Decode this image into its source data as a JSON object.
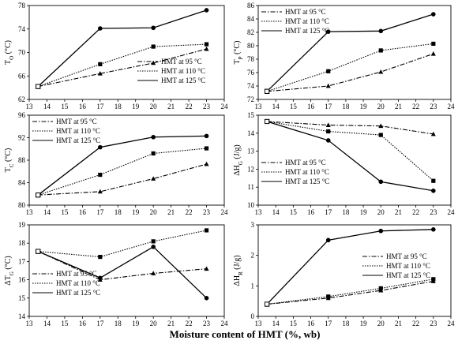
{
  "figure": {
    "xlabel": "Moisture content of HMT (%, wb)"
  },
  "styles": {
    "95": {
      "dash": "6,2,1.5,2",
      "marker": "triangle"
    },
    "110": {
      "dash": "1.5,1.5",
      "marker": "square"
    },
    "125": {
      "dash": "",
      "marker": "circle"
    }
  },
  "chart_data": [
    {
      "id": "To",
      "type": "line",
      "ylabel": "T",
      "ylabel_sub": "O",
      "ylabel_unit": " (°C)",
      "xlim": [
        13,
        24
      ],
      "ylim": [
        62,
        78
      ],
      "xticks": [
        13,
        14,
        15,
        16,
        17,
        18,
        19,
        20,
        21,
        22,
        23,
        24
      ],
      "yticks": [
        62,
        66,
        70,
        74,
        78
      ],
      "legend": "bottom-right",
      "series": [
        {
          "name": "HMT at 95 °C",
          "key": "95",
          "x": [
            13.5,
            17,
            20,
            23
          ],
          "y": [
            64.2,
            66.4,
            68.2,
            70.6
          ]
        },
        {
          "name": "HMT at 110 °C",
          "key": "110",
          "x": [
            13.5,
            17,
            20,
            23
          ],
          "y": [
            64.2,
            68.0,
            71.0,
            71.4
          ]
        },
        {
          "name": "HMT at 125 °C",
          "key": "125",
          "x": [
            13.5,
            17,
            20,
            23
          ],
          "y": [
            64.2,
            74.1,
            74.2,
            77.2
          ]
        }
      ]
    },
    {
      "id": "Tp",
      "type": "line",
      "ylabel": "T",
      "ylabel_sub": "P",
      "ylabel_unit": " (°C)",
      "xlim": [
        13,
        24
      ],
      "ylim": [
        72,
        86
      ],
      "xticks": [
        13,
        14,
        15,
        16,
        17,
        18,
        19,
        20,
        21,
        22,
        23,
        24
      ],
      "yticks": [
        72,
        74,
        76,
        78,
        80,
        82,
        84,
        86
      ],
      "legend": "top-left",
      "series": [
        {
          "name": "HMT at 95 °C",
          "key": "95",
          "x": [
            13.5,
            17,
            20,
            23
          ],
          "y": [
            73.2,
            74.0,
            76.1,
            78.8
          ]
        },
        {
          "name": "HMT at 110 °C",
          "key": "110",
          "x": [
            13.5,
            17,
            20,
            23
          ],
          "y": [
            73.2,
            76.2,
            79.3,
            80.3
          ]
        },
        {
          "name": "HMT at 125 °C",
          "key": "125",
          "x": [
            13.5,
            17,
            20,
            23
          ],
          "y": [
            73.2,
            82.1,
            82.2,
            84.7
          ]
        }
      ]
    },
    {
      "id": "Tc",
      "type": "line",
      "ylabel": "T",
      "ylabel_sub": "C",
      "ylabel_unit": " (°C)",
      "xlim": [
        13,
        24
      ],
      "ylim": [
        80,
        96
      ],
      "xticks": [
        13,
        14,
        15,
        16,
        17,
        18,
        19,
        20,
        21,
        22,
        23,
        24
      ],
      "yticks": [
        80,
        84,
        88,
        92,
        96
      ],
      "legend": "top-left",
      "series": [
        {
          "name": "HMT at 95 °C",
          "key": "95",
          "x": [
            13.5,
            17,
            20,
            23
          ],
          "y": [
            81.8,
            82.4,
            84.7,
            87.3
          ]
        },
        {
          "name": "HMT at 110 °C",
          "key": "110",
          "x": [
            13.5,
            17,
            20,
            23
          ],
          "y": [
            81.8,
            85.4,
            89.2,
            90.1
          ]
        },
        {
          "name": "HMT at 125 °C",
          "key": "125",
          "x": [
            13.5,
            17,
            20,
            23
          ],
          "y": [
            81.8,
            90.3,
            92.1,
            92.3
          ]
        }
      ]
    },
    {
      "id": "dHg",
      "type": "line",
      "ylabel": "ΔH",
      "ylabel_sub": "G",
      "ylabel_unit": " (J/g)",
      "xlim": [
        13,
        24
      ],
      "ylim": [
        10,
        15
      ],
      "xticks": [
        13,
        14,
        15,
        16,
        17,
        18,
        19,
        20,
        21,
        22,
        23,
        24
      ],
      "yticks": [
        10,
        11,
        12,
        13,
        14,
        15
      ],
      "legend": "bottom-left",
      "series": [
        {
          "name": "HMT at 95 °C",
          "key": "95",
          "x": [
            13.5,
            17,
            20,
            23
          ],
          "y": [
            14.65,
            14.45,
            14.4,
            13.95
          ]
        },
        {
          "name": "HMT at 110 °C",
          "key": "110",
          "x": [
            13.5,
            17,
            20,
            23
          ],
          "y": [
            14.65,
            14.1,
            13.9,
            11.35
          ]
        },
        {
          "name": "HMT at 125 °C",
          "key": "125",
          "x": [
            13.5,
            17,
            20,
            23
          ],
          "y": [
            14.65,
            13.6,
            11.3,
            10.8
          ]
        }
      ]
    },
    {
      "id": "dTg",
      "type": "line",
      "ylabel": "ΔT",
      "ylabel_sub": "G",
      "ylabel_unit": " (°C)",
      "xlim": [
        13,
        24
      ],
      "ylim": [
        14,
        19
      ],
      "xticks": [
        13,
        14,
        15,
        16,
        17,
        18,
        19,
        20,
        21,
        22,
        23,
        24
      ],
      "yticks": [
        14,
        15,
        16,
        17,
        18,
        19
      ],
      "legend": "bottom-left",
      "series": [
        {
          "name": "HMT at 95 °C",
          "key": "95",
          "x": [
            13.5,
            17,
            20,
            23
          ],
          "y": [
            17.55,
            16.0,
            16.35,
            16.6
          ]
        },
        {
          "name": "HMT at 110 °C",
          "key": "110",
          "x": [
            13.5,
            17,
            20,
            23
          ],
          "y": [
            17.55,
            17.25,
            18.1,
            18.7
          ]
        },
        {
          "name": "HMT at 125 °C",
          "key": "125",
          "x": [
            13.5,
            17,
            20,
            23
          ],
          "y": [
            17.55,
            16.1,
            17.8,
            15.0
          ]
        }
      ]
    },
    {
      "id": "dHr",
      "type": "line",
      "ylabel": "ΔH",
      "ylabel_sub": "R",
      "ylabel_unit": " (J/g)",
      "xlim": [
        13,
        24
      ],
      "ylim": [
        0,
        3
      ],
      "xticks": [
        13,
        14,
        15,
        16,
        17,
        18,
        19,
        20,
        21,
        22,
        23,
        24
      ],
      "yticks": [
        0,
        1,
        2,
        3
      ],
      "legend": "middle-right",
      "series": [
        {
          "name": "HMT at 95 °C",
          "key": "95",
          "x": [
            13.5,
            17,
            20,
            23
          ],
          "y": [
            0.4,
            0.6,
            0.85,
            1.15
          ]
        },
        {
          "name": "HMT at 110 °C",
          "key": "110",
          "x": [
            13.5,
            17,
            20,
            23
          ],
          "y": [
            0.4,
            0.65,
            0.92,
            1.22
          ]
        },
        {
          "name": "HMT at 125 °C",
          "key": "125",
          "x": [
            13.5,
            17,
            20,
            23
          ],
          "y": [
            0.4,
            2.5,
            2.8,
            2.85
          ]
        }
      ]
    }
  ]
}
